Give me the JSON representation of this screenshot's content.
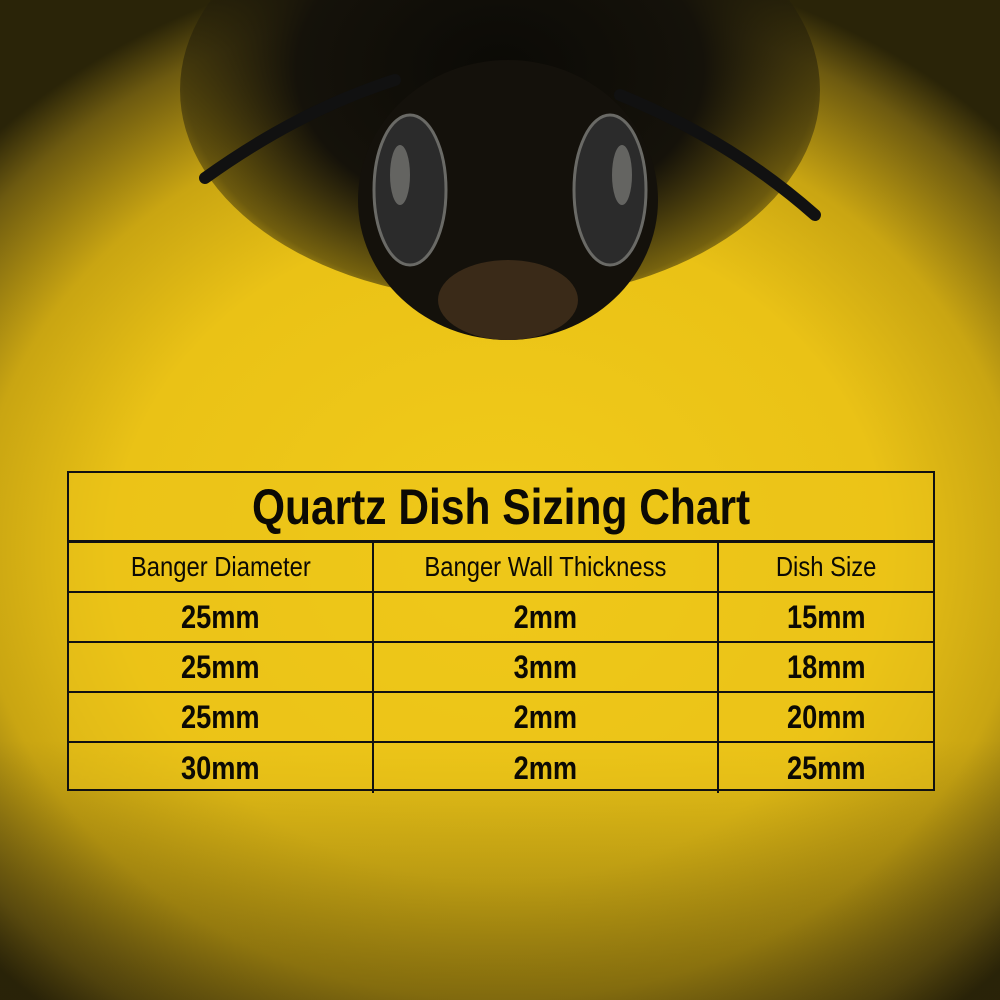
{
  "chart_data": {
    "type": "table",
    "title": "Quartz Dish Sizing Chart",
    "columns": [
      "Banger Diameter",
      "Banger Wall Thickness",
      "Dish Size"
    ],
    "rows": [
      [
        "25mm",
        "2mm",
        "15mm"
      ],
      [
        "25mm",
        "3mm",
        "18mm"
      ],
      [
        "25mm",
        "2mm",
        "20mm"
      ],
      [
        "30mm",
        "2mm",
        "25mm"
      ]
    ]
  },
  "colors": {
    "background": "#ecc419",
    "text": "#0c0a04",
    "border": "#111111"
  }
}
